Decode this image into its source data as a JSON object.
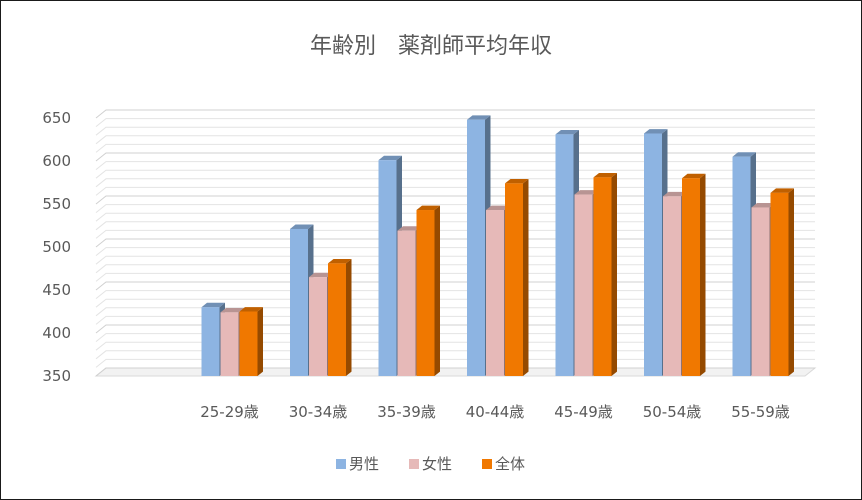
{
  "chart_data": {
    "type": "bar",
    "title": "年齢別　薬剤師平均年収",
    "xlabel": "",
    "ylabel": "",
    "categories": [
      "25-29歳",
      "30-34歳",
      "35-39歳",
      "40-44歳",
      "45-49歳",
      "50-54歳",
      "55-59歳"
    ],
    "series": [
      {
        "name": "男性",
        "color": "#8DB4E2",
        "values": [
          430,
          521,
          601,
          648,
          631,
          632,
          605
        ]
      },
      {
        "name": "女性",
        "color": "#E6B9B8",
        "values": [
          424,
          465,
          519,
          543,
          561,
          559,
          546
        ]
      },
      {
        "name": "全体",
        "color": "#F07800",
        "values": [
          425,
          481,
          543,
          574,
          581,
          580,
          563
        ]
      }
    ],
    "ylim": [
      350,
      650
    ],
    "yticks": [
      350,
      400,
      450,
      500,
      550,
      600,
      650
    ],
    "grid": true,
    "legend": "bottom",
    "style": "3d-clustered-column"
  }
}
